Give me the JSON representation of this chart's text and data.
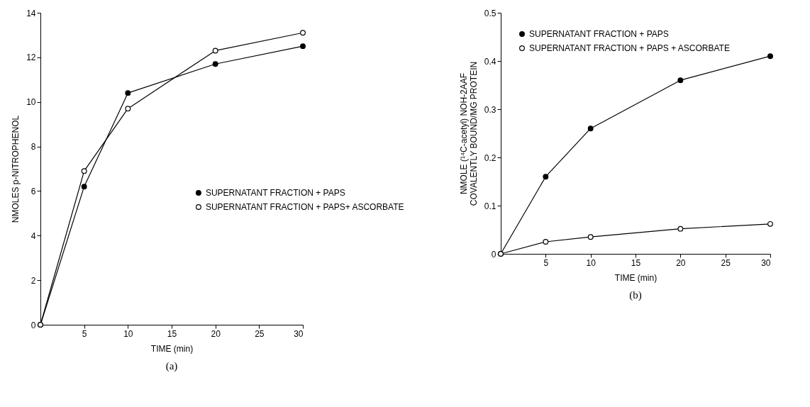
{
  "chart_data": [
    {
      "type": "line",
      "xlabel": "TIME (min)",
      "ylabel": "NMOLES p-NITROPHENOL",
      "annotations": [
        "(a)"
      ],
      "xlim": [
        0,
        30
      ],
      "xticks": [
        5,
        10,
        15,
        20,
        25,
        30
      ],
      "ylim": [
        0,
        14
      ],
      "yticks": [
        0,
        2,
        4,
        6,
        8,
        10,
        12,
        14
      ],
      "x": [
        0,
        5,
        10,
        20,
        30
      ],
      "grid": false,
      "legend": "right",
      "marker": "circle",
      "line_style": "solid",
      "series": [
        {
          "name": "SUPERNATANT FRACTION + PAPS",
          "color": "#000000",
          "values": [
            0,
            6.2,
            10.4,
            11.7,
            12.5
          ]
        },
        {
          "name": "SUPERNATANT FRACTION + PAPS+ ASCORBATE",
          "color": "#ffffff",
          "values": [
            0,
            6.9,
            9.7,
            12.3,
            13.1
          ]
        }
      ]
    },
    {
      "type": "line",
      "xlabel": "TIME (min)",
      "ylabel": "NMOLE (¹⁴C-acetyl) NOH-2AAF\nCOVALENTLY BOUND/MG PROTEIN",
      "annotations": [
        "(b)"
      ],
      "xlim": [
        0,
        30
      ],
      "xticks": [
        5,
        10,
        15,
        20,
        25,
        30
      ],
      "ylim": [
        0,
        0.5
      ],
      "yticks": [
        0,
        0.1,
        0.2,
        0.3,
        0.4,
        0.5
      ],
      "x": [
        0,
        5,
        10,
        20,
        30
      ],
      "grid": false,
      "legend": "top left",
      "marker": "circle",
      "line_style": "solid",
      "series": [
        {
          "name": "SUPERNATANT FRACTION + PAPS",
          "color": "#000000",
          "values": [
            0,
            0.16,
            0.26,
            0.36,
            0.41
          ]
        },
        {
          "name": "SUPERNATANT FRACTION + PAPS + ASCORBATE",
          "color": "#ffffff",
          "values": [
            0,
            0.025,
            0.035,
            0.052,
            0.062
          ]
        }
      ]
    }
  ]
}
